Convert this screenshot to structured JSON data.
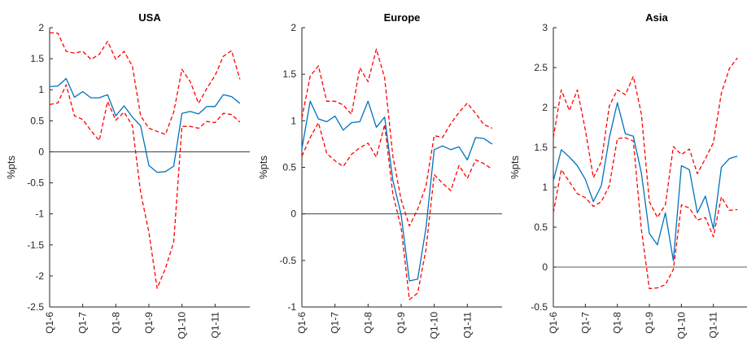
{
  "chart_data": [
    {
      "type": "line",
      "title": "USA",
      "ylabel": "%pts",
      "ylim": [
        -2.5,
        2
      ],
      "yticks": [
        "-2.5",
        "-2",
        "-1.5",
        "-1",
        "-0.5",
        "0",
        "0.5",
        "1",
        "1.5",
        "2"
      ],
      "xticks": [
        "Q1-6",
        "Q1-7",
        "Q1-8",
        "Q1-9",
        "Q1-10",
        "Q1-11"
      ],
      "x": [
        0,
        1,
        2,
        3,
        4,
        5,
        6,
        7,
        8,
        9,
        10,
        11,
        12,
        13,
        14,
        15,
        16,
        17,
        18,
        19,
        20,
        21,
        22,
        23
      ],
      "series": [
        {
          "values": [
            1.05,
            1.06,
            1.18,
            0.88,
            0.97,
            0.87,
            0.87,
            0.92,
            0.58,
            0.74,
            0.56,
            0.42,
            -0.22,
            -0.33,
            -0.32,
            -0.23,
            0.62,
            0.65,
            0.61,
            0.73,
            0.73,
            0.92,
            0.89,
            0.78
          ],
          "color": "#0072bd",
          "style": "solid"
        },
        {
          "values": [
            1.92,
            1.91,
            1.62,
            1.59,
            1.62,
            1.49,
            1.57,
            1.78,
            1.49,
            1.62,
            1.38,
            0.58,
            0.38,
            0.33,
            0.28,
            0.64,
            1.33,
            1.13,
            0.78,
            1.02,
            1.23,
            1.54,
            1.63,
            1.17
          ],
          "color": "#ff0000",
          "style": "dashed"
        },
        {
          "values": [
            0.76,
            0.79,
            1.08,
            0.58,
            0.52,
            0.34,
            0.18,
            0.81,
            0.51,
            0.64,
            0.42,
            -0.65,
            -1.3,
            -2.2,
            -1.88,
            -1.45,
            0.41,
            0.41,
            0.38,
            0.49,
            0.47,
            0.62,
            0.6,
            0.48
          ],
          "color": "#ff0000",
          "style": "dashed"
        }
      ]
    },
    {
      "type": "line",
      "title": "Europe",
      "ylabel": "%pts",
      "ylim": [
        -1,
        2
      ],
      "yticks": [
        "-1",
        "-0.5",
        "0",
        "0.5",
        "1",
        "1.5",
        "2"
      ],
      "xticks": [
        "Q1-6",
        "Q1-7",
        "Q1-8",
        "Q1-9",
        "Q1-10",
        "Q1-11"
      ],
      "x": [
        0,
        1,
        2,
        3,
        4,
        5,
        6,
        7,
        8,
        9,
        10,
        11,
        12,
        13,
        14,
        15,
        16,
        17,
        18,
        19,
        20,
        21,
        22,
        23
      ],
      "series": [
        {
          "values": [
            0.7,
            1.21,
            1.02,
            0.99,
            1.05,
            0.9,
            0.98,
            0.99,
            1.21,
            0.93,
            1.04,
            0.36,
            -0.01,
            -0.72,
            -0.7,
            -0.15,
            0.69,
            0.73,
            0.69,
            0.72,
            0.58,
            0.82,
            0.81,
            0.75
          ],
          "color": "#0072bd",
          "style": "solid"
        },
        {
          "values": [
            1.03,
            1.48,
            1.59,
            1.21,
            1.21,
            1.17,
            1.07,
            1.57,
            1.42,
            1.77,
            1.46,
            0.62,
            0.15,
            -0.13,
            0.05,
            0.3,
            0.84,
            0.82,
            0.97,
            1.09,
            1.19,
            1.08,
            0.96,
            0.92
          ],
          "color": "#ff0000",
          "style": "dashed"
        },
        {
          "values": [
            0.62,
            0.82,
            0.98,
            0.65,
            0.57,
            0.51,
            0.64,
            0.71,
            0.76,
            0.61,
            0.96,
            0.21,
            -0.15,
            -0.92,
            -0.85,
            -0.38,
            0.42,
            0.33,
            0.25,
            0.52,
            0.38,
            0.58,
            0.54,
            0.48
          ],
          "color": "#ff0000",
          "style": "dashed"
        }
      ]
    },
    {
      "type": "line",
      "title": "Asia",
      "ylabel": "%pts",
      "ylim": [
        -0.5,
        3
      ],
      "yticks": [
        "-0.5",
        "0",
        "0.5",
        "1",
        "1.5",
        "2",
        "2.5",
        "3"
      ],
      "xticks": [
        "Q1-6",
        "Q1-7",
        "Q1-8",
        "Q1-9",
        "Q1-10",
        "Q1-11"
      ],
      "x": [
        0,
        1,
        2,
        3,
        4,
        5,
        6,
        7,
        8,
        9,
        10,
        11,
        12,
        13,
        14,
        15,
        16,
        17,
        18,
        19,
        20,
        21,
        22,
        23
      ],
      "series": [
        {
          "values": [
            1.08,
            1.47,
            1.38,
            1.27,
            1.1,
            0.82,
            1.02,
            1.62,
            2.06,
            1.67,
            1.64,
            1.18,
            0.42,
            0.28,
            0.68,
            0.08,
            1.27,
            1.22,
            0.68,
            0.89,
            0.48,
            1.25,
            1.36,
            1.39
          ],
          "color": "#0072bd",
          "style": "solid"
        },
        {
          "values": [
            1.62,
            2.22,
            1.96,
            2.22,
            1.72,
            1.12,
            1.32,
            2.02,
            2.22,
            2.16,
            2.39,
            1.92,
            0.82,
            0.62,
            0.78,
            1.51,
            1.41,
            1.48,
            1.17,
            1.36,
            1.56,
            2.18,
            2.49,
            2.62
          ],
          "color": "#ff0000",
          "style": "dashed"
        },
        {
          "values": [
            0.68,
            1.22,
            1.07,
            0.92,
            0.87,
            0.76,
            0.82,
            1.02,
            1.61,
            1.62,
            1.58,
            0.47,
            -0.27,
            -0.26,
            -0.22,
            -0.03,
            0.78,
            0.74,
            0.59,
            0.62,
            0.38,
            0.88,
            0.71,
            0.72
          ],
          "color": "#ff0000",
          "style": "dashed"
        }
      ]
    }
  ]
}
